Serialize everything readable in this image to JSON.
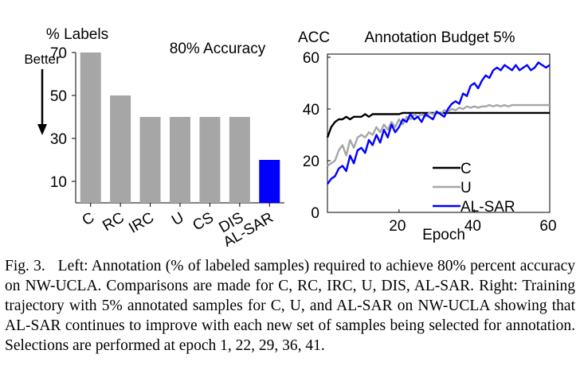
{
  "chart_data": [
    {
      "type": "bar",
      "ylabel": "% Labels",
      "title": "80% Accuracy",
      "better_label": "Better",
      "categories": [
        "C",
        "RC",
        "IRC",
        "U",
        "CS",
        "DIS",
        "AL-SAR"
      ],
      "values": [
        70,
        50,
        40,
        40,
        40,
        40,
        20
      ],
      "ylim": [
        0,
        70
      ],
      "yticks": [
        10,
        30,
        50,
        70
      ],
      "colors": [
        "#a6a6a6",
        "#a6a6a6",
        "#a6a6a6",
        "#a6a6a6",
        "#a6a6a6",
        "#a6a6a6",
        "#0000ff"
      ]
    },
    {
      "type": "line",
      "ylabel": "ACC",
      "title": "Annotation Budget 5%",
      "xlabel": "Epoch",
      "xlim": [
        1,
        60
      ],
      "ylim": [
        0,
        60
      ],
      "xticks": [
        20,
        40,
        60
      ],
      "yticks": [
        0,
        20,
        40,
        60
      ],
      "legend_position": "bottom-right",
      "series": [
        {
          "name": "C",
          "color": "#000000",
          "x": [
            1,
            2,
            3,
            4,
            5,
            6,
            7,
            8,
            9,
            10,
            11,
            12,
            13,
            14,
            15,
            16,
            17,
            18,
            19,
            20,
            21,
            22,
            23,
            24,
            25,
            26,
            27,
            28,
            29,
            30,
            31,
            32,
            33,
            34,
            35,
            36,
            37,
            38,
            39,
            40,
            41,
            42,
            43,
            44,
            45,
            46,
            47,
            48,
            49,
            50,
            51,
            52,
            53,
            54,
            55,
            56,
            57,
            58,
            59,
            60
          ],
          "y": [
            29,
            33,
            35,
            36,
            36,
            37,
            36,
            37,
            37,
            37,
            38,
            37,
            38,
            38,
            38,
            38,
            38,
            38,
            38,
            38,
            38.5,
            38.5,
            38.5,
            38.5,
            38.5,
            38.5,
            38.5,
            38.5,
            38.5,
            38.5,
            38.5,
            38.5,
            38.5,
            38.5,
            38.5,
            38.5,
            38.5,
            38.5,
            38.5,
            38.5,
            38.5,
            38.5,
            38.5,
            38.5,
            38.5,
            38.5,
            38.5,
            38.5,
            38.5,
            38.5,
            38.5,
            38.5,
            38.5,
            38.5,
            38.5,
            38.5,
            38.5,
            38.5,
            38.5,
            38.5
          ]
        },
        {
          "name": "U",
          "color": "#a6a6a6",
          "x": [
            1,
            2,
            3,
            4,
            5,
            6,
            7,
            8,
            9,
            10,
            11,
            12,
            13,
            14,
            15,
            16,
            17,
            18,
            19,
            20,
            21,
            22,
            23,
            24,
            25,
            26,
            27,
            28,
            29,
            30,
            31,
            32,
            33,
            34,
            35,
            36,
            37,
            38,
            39,
            40,
            41,
            42,
            43,
            44,
            45,
            46,
            47,
            48,
            49,
            50,
            51,
            52,
            53,
            54,
            55,
            56,
            57,
            58,
            59,
            60
          ],
          "y": [
            18,
            19,
            20,
            24,
            26,
            22,
            28,
            25,
            29,
            30,
            29,
            31,
            30,
            33,
            31,
            34,
            32,
            35,
            33,
            36,
            34,
            37,
            36,
            38,
            37,
            38,
            37,
            38.5,
            38,
            39,
            38,
            39.5,
            39,
            40,
            39.5,
            40.5,
            40,
            41,
            40.5,
            41,
            40.5,
            41,
            41,
            41.5,
            41,
            41.5,
            41,
            41.5,
            41,
            41.5,
            41.5,
            41.5,
            41.5,
            41.5,
            41.5,
            41.5,
            41.5,
            41.5,
            41.5,
            41.5
          ]
        },
        {
          "name": "AL-SAR",
          "color": "#0000ff",
          "x": [
            1,
            2,
            3,
            4,
            5,
            6,
            7,
            8,
            9,
            10,
            11,
            12,
            13,
            14,
            15,
            16,
            17,
            18,
            19,
            20,
            21,
            22,
            23,
            24,
            25,
            26,
            27,
            28,
            29,
            30,
            31,
            32,
            33,
            34,
            35,
            36,
            37,
            38,
            39,
            40,
            41,
            42,
            43,
            44,
            45,
            46,
            47,
            48,
            49,
            50,
            51,
            52,
            53,
            54,
            55,
            56,
            57,
            58,
            59,
            60
          ],
          "y": [
            11,
            13,
            14,
            17,
            18,
            16,
            22,
            19,
            24,
            25,
            23,
            28,
            26,
            30,
            27,
            32,
            29,
            34,
            31,
            33,
            36,
            35,
            38,
            36,
            37,
            35,
            38,
            37,
            36,
            39,
            38,
            37,
            40,
            42,
            43,
            42,
            46,
            45,
            49,
            50,
            48,
            51,
            53,
            52,
            55,
            56,
            55,
            57,
            56,
            55,
            57,
            55,
            56,
            57,
            55,
            56,
            58,
            57,
            56,
            57
          ]
        }
      ]
    }
  ],
  "caption": {
    "fig_label": "Fig. 3.",
    "text": "Left: Annotation (% of labeled samples) required to achieve 80% percent accuracy on NW-UCLA. Comparisons are made for C, RC, IRC, U, DIS, AL-SAR. Right: Training trajectory with 5% annotated samples for C, U, and AL-SAR on NW-UCLA showing that AL-SAR continues to improve with each new set of samples being selected for annotation. Selections are performed at epoch 1, 22, 29, 36, 41."
  }
}
